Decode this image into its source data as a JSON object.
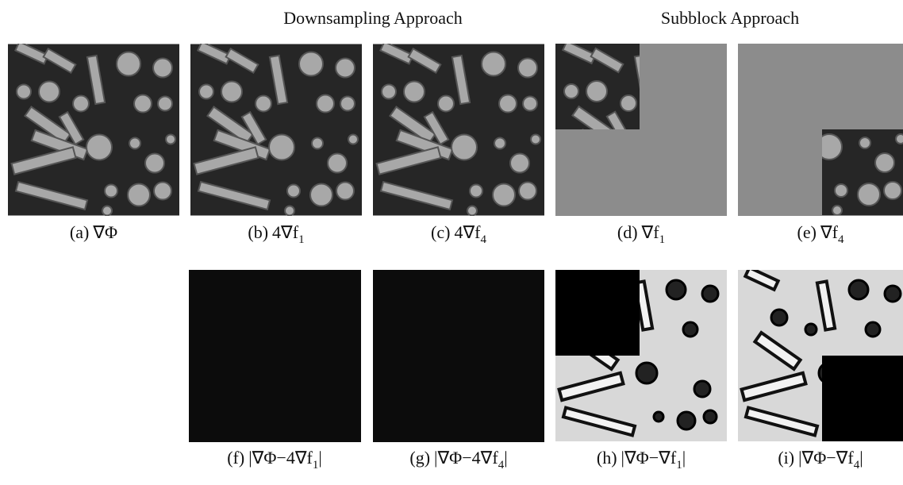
{
  "headings": {
    "downsampling": "Downsampling Approach",
    "subblock": "Subblock Approach"
  },
  "panels": [
    {
      "label": "(a)",
      "text": "∇Φ"
    },
    {
      "label": "(b)",
      "text": "4∇f",
      "sub": "1"
    },
    {
      "label": "(c)",
      "text": "4∇f",
      "sub": "4"
    },
    {
      "label": "(d)",
      "text": "∇f",
      "sub": "1"
    },
    {
      "label": "(e)",
      "text": "∇f",
      "sub": "4"
    },
    {
      "label": "(f)",
      "text": "|∇Φ−4∇f",
      "sub": "1",
      "tail": "|"
    },
    {
      "label": "(g)",
      "text": "|∇Φ−4∇f",
      "sub": "4",
      "tail": "|"
    },
    {
      "label": "(h)",
      "text": "|∇Φ−∇f",
      "sub": "1",
      "tail": "|"
    },
    {
      "label": "(i)",
      "text": "|∇Φ−∇f",
      "sub": "4",
      "tail": "|"
    }
  ]
}
